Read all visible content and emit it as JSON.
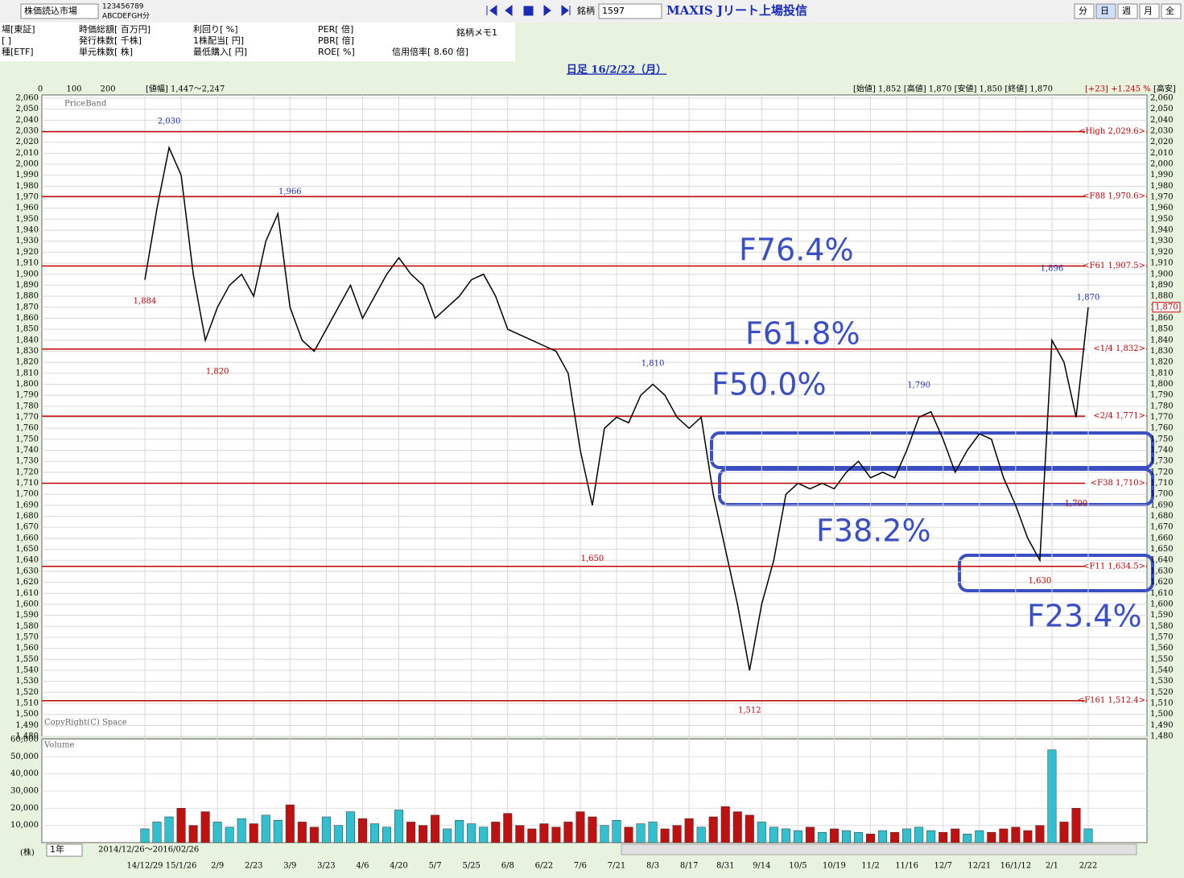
{
  "ui": {
    "market": "株価読込市場",
    "digits": "123456789",
    "letters": "ABCDEFGH分",
    "code_label": "銘柄",
    "code": "1597",
    "name": "MAXIS Jリート上場投信",
    "periods": [
      "分",
      "日",
      "週",
      "月",
      "全"
    ],
    "info": [
      [
        "場[東証]",
        "時価総額[ 百万円]",
        "利回り[ %]",
        "PER[ 倍]"
      ],
      [
        "[ ]",
        "発行株数[ 千株]",
        "1株配当[ 円]",
        "PBR[ 倍]"
      ],
      [
        "種[ETF]",
        "単元株数[ 株]",
        "最低購入[ 円]",
        "ROE[ %]"
      ]
    ],
    "memo": "銘柄メモ1",
    "margin": "信用倍率[ 8.60 倍]"
  },
  "chart_data": {
    "type": "line",
    "title": "日足 16/2/22（月）",
    "range_text": "[値幅] 1,447〜2,247",
    "ohlc_text": "[始値] 1,852 [高値] 1,870 [安値] 1,850 [終値] 1,870",
    "change_text": "[+23] +1.245 %",
    "highlow_text": "[高安]",
    "band_label": "PriceBand",
    "copyright": "CopyRight(C) Space",
    "band_axis": [
      "0",
      "100",
      "200"
    ],
    "current": {
      "value": 1870,
      "label": "1,870"
    },
    "color": "#000000",
    "categories": [
      "14/12/29",
      null,
      null,
      "15/1/26",
      null,
      null,
      "2/9",
      null,
      null,
      "2/23",
      null,
      null,
      "3/9",
      null,
      null,
      "3/23",
      null,
      null,
      "4/6",
      null,
      null,
      "4/20",
      null,
      null,
      "5/7",
      null,
      null,
      "5/25",
      null,
      null,
      "6/8",
      null,
      null,
      "6/22",
      null,
      null,
      "7/6",
      null,
      null,
      "7/21",
      null,
      null,
      "8/3",
      null,
      null,
      "8/17",
      null,
      null,
      "8/31",
      null,
      null,
      "9/14",
      null,
      null,
      "10/5",
      null,
      null,
      "10/19",
      null,
      null,
      "11/2",
      null,
      null,
      "11/16",
      null,
      null,
      "12/7",
      null,
      null,
      "12/21",
      null,
      null,
      "16/1/12",
      null,
      null,
      "2/1",
      null,
      null,
      "2/22"
    ],
    "values": [
      1895,
      1960,
      2015,
      1990,
      1900,
      1840,
      1870,
      1890,
      1900,
      1880,
      1930,
      1955,
      1870,
      1840,
      1830,
      1850,
      1870,
      1890,
      1860,
      1880,
      1900,
      1915,
      1900,
      1890,
      1860,
      1870,
      1880,
      1895,
      1900,
      1880,
      1850,
      1845,
      1840,
      1835,
      1830,
      1810,
      1740,
      1690,
      1760,
      1770,
      1765,
      1790,
      1800,
      1790,
      1770,
      1760,
      1770,
      1700,
      1650,
      1600,
      1540,
      1600,
      1640,
      1700,
      1710,
      1705,
      1710,
      1705,
      1720,
      1730,
      1715,
      1720,
      1715,
      1740,
      1770,
      1775,
      1750,
      1720,
      1740,
      1755,
      1750,
      1715,
      1690,
      1660,
      1640,
      1840,
      1820,
      1770,
      1870
    ],
    "ylim": [
      1480,
      2060
    ],
    "yticks": [
      {
        "value": 1480,
        "label": "1,480"
      },
      {
        "value": 1490,
        "label": "1,490"
      },
      {
        "value": 1500,
        "label": "1,500"
      },
      {
        "value": 1510,
        "label": "1,510"
      },
      {
        "value": 1520,
        "label": "1,520"
      },
      {
        "value": 1530,
        "label": "1,530"
      },
      {
        "value": 1540,
        "label": "1,540"
      },
      {
        "value": 1550,
        "label": "1,550"
      },
      {
        "value": 1560,
        "label": "1,560"
      },
      {
        "value": 1570,
        "label": "1,570"
      },
      {
        "value": 1580,
        "label": "1,580"
      },
      {
        "value": 1590,
        "label": "1,590"
      },
      {
        "value": 1600,
        "label": "1,600"
      },
      {
        "value": 1610,
        "label": "1,610"
      },
      {
        "value": 1620,
        "label": "1,620"
      },
      {
        "value": 1630,
        "label": "1,630"
      },
      {
        "value": 1640,
        "label": "1,640"
      },
      {
        "value": 1650,
        "label": "1,650"
      },
      {
        "value": 1660,
        "label": "1,660"
      },
      {
        "value": 1670,
        "label": "1,670"
      },
      {
        "value": 1680,
        "label": "1,680"
      },
      {
        "value": 1690,
        "label": "1,690"
      },
      {
        "value": 1700,
        "label": "1,700"
      },
      {
        "value": 1710,
        "label": "1,710"
      },
      {
        "value": 1720,
        "label": "1,720"
      },
      {
        "value": 1730,
        "label": "1,730"
      },
      {
        "value": 1740,
        "label": "1,740"
      },
      {
        "value": 1750,
        "label": "1,750"
      },
      {
        "value": 1760,
        "label": "1,760"
      },
      {
        "value": 1770,
        "label": "1,770"
      },
      {
        "value": 1780,
        "label": "1,780"
      },
      {
        "value": 1790,
        "label": "1,790"
      },
      {
        "value": 1800,
        "label": "1,800"
      },
      {
        "value": 1810,
        "label": "1,810"
      },
      {
        "value": 1820,
        "label": "1,820"
      },
      {
        "value": 1830,
        "label": "1,830"
      },
      {
        "value": 1840,
        "label": "1,840"
      },
      {
        "value": 1850,
        "label": "1,850"
      },
      {
        "value": 1860,
        "label": "1,860"
      },
      {
        "value": 1870,
        "label": "1,870"
      },
      {
        "value": 1880,
        "label": "1,880"
      },
      {
        "value": 1890,
        "label": "1,890"
      },
      {
        "value": 1900,
        "label": "1,900"
      },
      {
        "value": 1910,
        "label": "1,910"
      },
      {
        "value": 1920,
        "label": "1,920"
      },
      {
        "value": 1930,
        "label": "1,930"
      },
      {
        "value": 1940,
        "label": "1,940"
      },
      {
        "value": 1950,
        "label": "1,950"
      },
      {
        "value": 1960,
        "label": "1,960"
      },
      {
        "value": 1970,
        "label": "1,970"
      },
      {
        "value": 1980,
        "label": "1,980"
      },
      {
        "value": 1990,
        "label": "1,990"
      },
      {
        "value": 2000,
        "label": "2,000"
      },
      {
        "value": 2010,
        "label": "2,010"
      },
      {
        "value": 2020,
        "label": "2,020"
      },
      {
        "value": 2030,
        "label": "2,030"
      },
      {
        "value": 2040,
        "label": "2,040"
      },
      {
        "value": 2050,
        "label": "2,050"
      },
      {
        "value": 2060,
        "label": "2,060"
      }
    ],
    "levels": [
      {
        "value": 2029.6,
        "label": "<High 2,029.6>"
      },
      {
        "value": 1970.6,
        "label": "<F88 1,970.6>"
      },
      {
        "value": 1907.5,
        "label": "<F61 1,907.5>"
      },
      {
        "value": 1832,
        "label": "<1/4 1,832>"
      },
      {
        "value": 1771,
        "label": "<2/4 1,771>"
      },
      {
        "value": 1710,
        "label": "<F38 1,710>"
      },
      {
        "value": 1634.5,
        "label": "<F11 1,634.5>"
      },
      {
        "value": 1512.4,
        "label": "<F161 1,512.4>"
      }
    ],
    "peaks": [
      {
        "value": 2030,
        "label": "2,030"
      },
      {
        "value": 1966,
        "label": "1,966"
      },
      {
        "value": 1884,
        "label": "1,884"
      },
      {
        "value": 1820,
        "label": "1,820"
      },
      {
        "value": 1810,
        "label": "1,810"
      },
      {
        "value": 1650,
        "label": "1,650"
      },
      {
        "value": 1512,
        "label": "1,512"
      },
      {
        "value": 1790,
        "label": "1,790"
      },
      {
        "value": 1896,
        "label": "1,896"
      },
      {
        "value": 1870,
        "label": "1,870"
      },
      {
        "value": 1630,
        "label": "1,630"
      },
      {
        "value": 1700,
        "label": "1,700"
      }
    ],
    "annotations": [
      "F76.4%",
      "F61.8%",
      "F50.0%",
      "F38.2%",
      "F23.4%"
    ],
    "volume": {
      "label": "Volume",
      "unit": "(株)",
      "values": [
        8000,
        12000,
        15000,
        20000,
        10000,
        18000,
        12000,
        9000,
        14000,
        11000,
        16000,
        13000,
        22000,
        12000,
        9000,
        15000,
        10000,
        18000,
        14000,
        11000,
        9000,
        19000,
        12000,
        10000,
        16000,
        8000,
        13000,
        11000,
        9000,
        12000,
        17000,
        10000,
        8000,
        11000,
        9000,
        12000,
        18000,
        15000,
        10000,
        13000,
        9000,
        11000,
        12000,
        8000,
        10000,
        14000,
        9000,
        15000,
        21000,
        18000,
        16000,
        12000,
        9000,
        8000,
        7000,
        9000,
        6000,
        8000,
        7000,
        6000,
        5000,
        7000,
        6000,
        8000,
        9000,
        7000,
        6000,
        8000,
        5000,
        7000,
        6000,
        8000,
        9000,
        7000,
        10000,
        54000,
        12000,
        20000,
        8000
      ],
      "ylim": [
        0,
        60000
      ],
      "yticks": [
        {
          "value": 10000,
          "label": "10,000"
        },
        {
          "value": 20000,
          "label": "20,000"
        },
        {
          "value": 30000,
          "label": "30,000"
        },
        {
          "value": 40000,
          "label": "40,000"
        },
        {
          "value": 50000,
          "label": "50,000"
        },
        {
          "value": 60000,
          "label": "60,000"
        }
      ]
    },
    "footer": {
      "span": "1年",
      "range": "2014/12/26〜2016/02/26"
    }
  }
}
